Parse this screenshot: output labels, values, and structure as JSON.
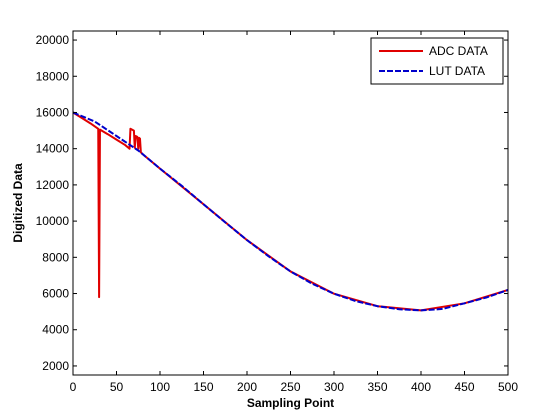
{
  "chart_data": {
    "type": "line",
    "title": "",
    "xlabel": "Sampling Point",
    "ylabel": "Digitized Data",
    "xlim": [
      0,
      500
    ],
    "ylim": [
      1500,
      20500
    ],
    "xticks": [
      0,
      50,
      100,
      150,
      200,
      250,
      300,
      350,
      400,
      450,
      500
    ],
    "yticks": [
      2000,
      4000,
      6000,
      8000,
      10000,
      12000,
      14000,
      16000,
      18000,
      20000
    ],
    "grid": false,
    "legend_position": "top-right",
    "series": [
      {
        "name": "ADC DATA",
        "color": "#e00000",
        "style": "solid",
        "points": [
          [
            0,
            16000
          ],
          [
            10,
            15700
          ],
          [
            20,
            15400
          ],
          [
            29,
            15100
          ],
          [
            30,
            5800
          ],
          [
            31,
            15050
          ],
          [
            40,
            14800
          ],
          [
            50,
            14500
          ],
          [
            60,
            14200
          ],
          [
            65,
            14000
          ],
          [
            66,
            15100
          ],
          [
            70,
            15000
          ],
          [
            71,
            14050
          ],
          [
            72,
            14700
          ],
          [
            74,
            14650
          ],
          [
            75,
            14000
          ],
          [
            76,
            14600
          ],
          [
            77,
            14550
          ],
          [
            78,
            13800
          ],
          [
            80,
            13700
          ],
          [
            100,
            12900
          ],
          [
            150,
            10930
          ],
          [
            200,
            8950
          ],
          [
            250,
            7220
          ],
          [
            300,
            5990
          ],
          [
            350,
            5300
          ],
          [
            400,
            5070
          ],
          [
            450,
            5460
          ],
          [
            500,
            6200
          ]
        ]
      },
      {
        "name": "LUT DATA",
        "color": "#0000cc",
        "style": "dashed",
        "points": [
          [
            0,
            16000
          ],
          [
            25,
            15500
          ],
          [
            50,
            14700
          ],
          [
            75,
            13900
          ],
          [
            100,
            12900
          ],
          [
            125,
            11950
          ],
          [
            150,
            10930
          ],
          [
            175,
            9930
          ],
          [
            200,
            8950
          ],
          [
            225,
            8050
          ],
          [
            250,
            7220
          ],
          [
            275,
            6540
          ],
          [
            300,
            5990
          ],
          [
            325,
            5580
          ],
          [
            350,
            5300
          ],
          [
            375,
            5130
          ],
          [
            400,
            5070
          ],
          [
            425,
            5150
          ],
          [
            450,
            5460
          ],
          [
            475,
            5780
          ],
          [
            500,
            6200
          ]
        ]
      }
    ]
  }
}
